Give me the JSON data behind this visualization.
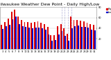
{
  "title": "Milwaukee Weather Dew Point - Daily High/Low",
  "title_fontsize": 4.5,
  "bar_width": 0.4,
  "high_color": "#dd0000",
  "low_color": "#0000cc",
  "ylim": [
    0,
    80
  ],
  "yticks": [
    20,
    40,
    60,
    80
  ],
  "background_color": "#ffffff",
  "grid_color": "#cccccc",
  "categories": [
    "3",
    "4",
    "5",
    "6",
    "7",
    "8",
    "9",
    "10",
    "11",
    "12",
    "13",
    "14",
    "15",
    "16",
    "17",
    "18",
    "19",
    "20",
    "21",
    "22",
    "23",
    "24",
    "25",
    "26",
    "27",
    "28",
    "29",
    "30",
    "31"
  ],
  "high_values": [
    46,
    52,
    58,
    72,
    75,
    62,
    55,
    52,
    52,
    50,
    52,
    53,
    51,
    48,
    42,
    27,
    27,
    44,
    48,
    40,
    30,
    62,
    55,
    56,
    54,
    53,
    51,
    48,
    46
  ],
  "low_values": [
    38,
    44,
    46,
    57,
    62,
    48,
    44,
    43,
    41,
    40,
    41,
    41,
    40,
    37,
    28,
    16,
    18,
    28,
    35,
    26,
    16,
    40,
    44,
    45,
    43,
    42,
    41,
    37,
    36
  ],
  "legend_high": "High",
  "legend_low": "Low",
  "dashed_line_indices": [
    18,
    19,
    20,
    21
  ],
  "figsize": [
    1.6,
    0.87
  ],
  "dpi": 100
}
